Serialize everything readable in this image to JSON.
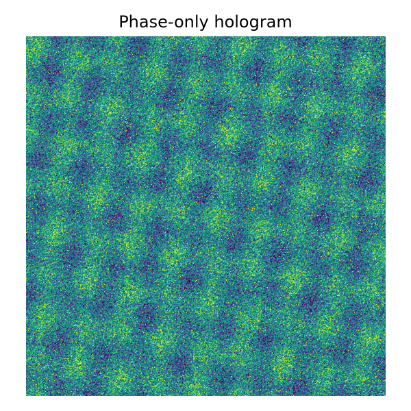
{
  "figure": {
    "title": "Phase-only hologram",
    "image": {
      "description_icon": "phase-hologram-image",
      "colormap": "viridis",
      "pattern": "random-phase-noise"
    }
  }
}
